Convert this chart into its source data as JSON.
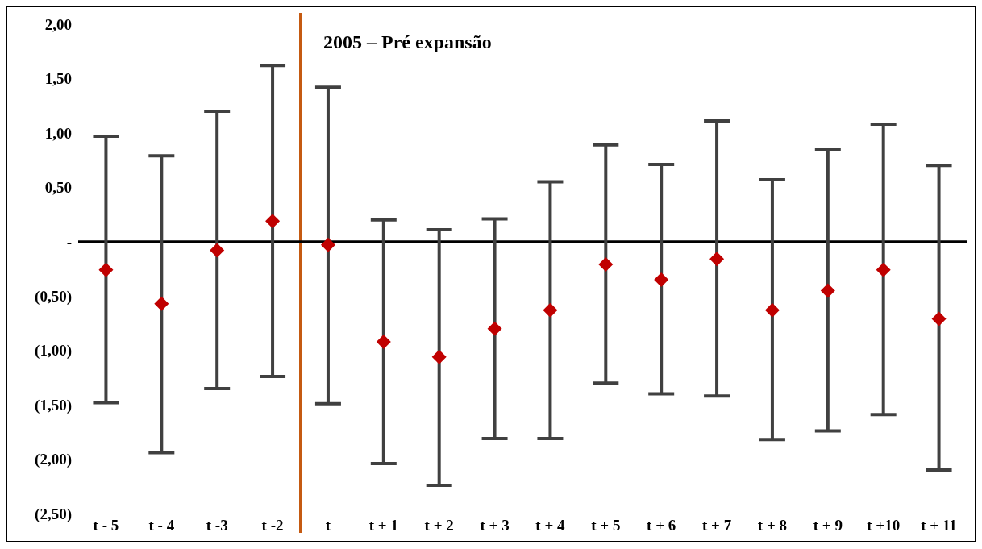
{
  "chart_data": {
    "type": "scatter",
    "categories": [
      "t - 5",
      "t - 4",
      "t -3",
      "t -2",
      "t",
      "t + 1",
      "t + 2",
      "t + 3",
      "t + 4",
      "t + 5",
      "t + 6",
      "t + 7",
      "t + 8",
      "t + 9",
      "t +10",
      "t + 11"
    ],
    "series": [
      {
        "color": "#c00000",
        "values": [
          -0.26,
          -0.57,
          -0.08,
          0.19,
          -0.03,
          -0.92,
          -1.06,
          -0.8,
          -0.63,
          -0.21,
          -0.35,
          -0.16,
          -0.63,
          -0.45,
          -0.26,
          -0.71
        ],
        "errors": [
          [
            -1.48,
            0.97
          ],
          [
            -1.94,
            0.79
          ],
          [
            -1.35,
            1.2
          ],
          [
            -1.24,
            1.62
          ],
          [
            -1.49,
            1.42
          ],
          [
            -2.04,
            0.2
          ],
          [
            -2.24,
            0.11
          ],
          [
            -1.81,
            0.21
          ],
          [
            -1.81,
            0.55
          ],
          [
            -1.3,
            0.89
          ],
          [
            -1.4,
            0.71
          ],
          [
            -1.42,
            1.11
          ],
          [
            -1.82,
            0.57
          ],
          [
            -1.74,
            0.85
          ],
          [
            -1.59,
            1.08
          ],
          [
            -2.1,
            0.7
          ]
        ]
      }
    ],
    "marker": "diamond",
    "ylim": [
      -2.5,
      2
    ],
    "yticks": [
      {
        "value": 2,
        "label": "2,00"
      },
      {
        "value": 1.5,
        "label": "1,50"
      },
      {
        "value": 1,
        "label": "1,00"
      },
      {
        "value": 0.5,
        "label": "0,50"
      },
      {
        "value": 0,
        "label": "-"
      },
      {
        "value": -0.5,
        "label": "(0,50)"
      },
      {
        "value": -1,
        "label": "(1,00)"
      },
      {
        "value": -1.5,
        "label": "(1,50)"
      },
      {
        "value": -2,
        "label": "(2,00)"
      },
      {
        "value": -2.5,
        "label": "(2,50)"
      }
    ],
    "ref_lines": [
      {
        "axis": "y",
        "value": 0,
        "color": "#000000"
      }
    ],
    "annotations": [
      "2005 – Pré expansão"
    ],
    "grid": false,
    "legend": false
  }
}
